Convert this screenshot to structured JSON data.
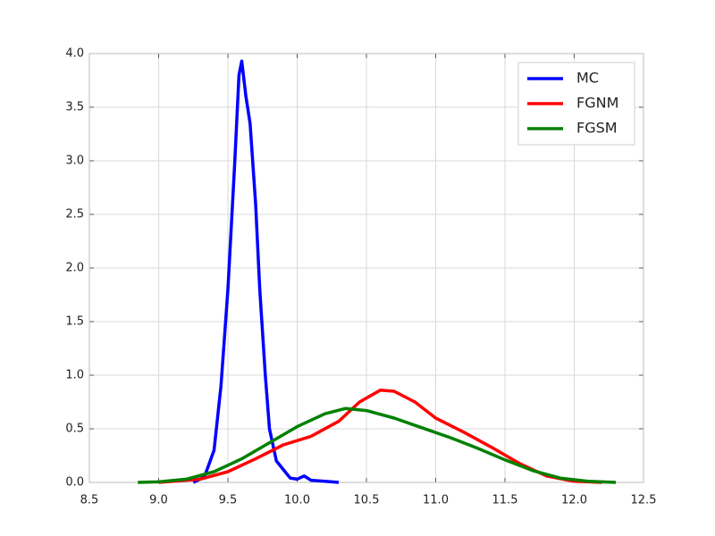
{
  "chart_data": {
    "type": "line",
    "xlim": [
      8.5,
      12.5
    ],
    "ylim": [
      0,
      4
    ],
    "xticks": [
      8.5,
      {
        "value": 9,
        "label": "9.0"
      },
      9.5,
      {
        "value": 10,
        "label": "10.0"
      },
      10.5,
      {
        "value": 11,
        "label": "11.0"
      },
      11.5,
      {
        "value": 12,
        "label": "12.0"
      },
      12.5
    ],
    "yticks": [
      {
        "value": 0,
        "label": "0.0"
      },
      0.5,
      {
        "value": 1,
        "label": "1.0"
      },
      1.5,
      {
        "value": 2,
        "label": "2.0"
      },
      2.5,
      {
        "value": 3,
        "label": "3.0"
      },
      3.5,
      {
        "value": 4,
        "label": "4.0"
      }
    ],
    "grid": true,
    "legend": "upper right",
    "series": [
      {
        "name": "MC",
        "color": "#0000ff",
        "x": [
          9.25,
          9.33,
          9.4,
          9.45,
          9.5,
          9.55,
          9.58,
          9.6,
          9.63,
          9.66,
          9.7,
          9.73,
          9.77,
          9.8,
          9.85,
          9.9,
          9.95,
          10.0,
          10.05,
          10.1,
          10.2,
          10.3
        ],
        "values": [
          0,
          0.05,
          0.3,
          0.9,
          1.8,
          3.0,
          3.8,
          3.93,
          3.6,
          3.35,
          2.6,
          1.8,
          1.0,
          0.5,
          0.2,
          0.12,
          0.04,
          0.03,
          0.06,
          0.02,
          0.01,
          0
        ]
      },
      {
        "name": "FGNM",
        "color": "#ff0000",
        "x": [
          9.0,
          9.3,
          9.5,
          9.7,
          9.9,
          10.1,
          10.3,
          10.45,
          10.6,
          10.7,
          10.85,
          11.0,
          11.2,
          11.4,
          11.6,
          11.8,
          12.0,
          12.2
        ],
        "values": [
          0,
          0.03,
          0.1,
          0.22,
          0.35,
          0.43,
          0.57,
          0.75,
          0.86,
          0.85,
          0.75,
          0.6,
          0.47,
          0.33,
          0.18,
          0.06,
          0.01,
          0
        ]
      },
      {
        "name": "FGSM",
        "color": "#008000",
        "x": [
          8.85,
          9.0,
          9.2,
          9.4,
          9.6,
          9.8,
          10.0,
          10.2,
          10.35,
          10.5,
          10.7,
          10.9,
          11.1,
          11.3,
          11.5,
          11.7,
          11.9,
          12.1,
          12.3
        ],
        "values": [
          0,
          0.005,
          0.03,
          0.1,
          0.22,
          0.37,
          0.52,
          0.64,
          0.69,
          0.67,
          0.6,
          0.51,
          0.42,
          0.32,
          0.21,
          0.11,
          0.04,
          0.01,
          0
        ]
      }
    ]
  }
}
